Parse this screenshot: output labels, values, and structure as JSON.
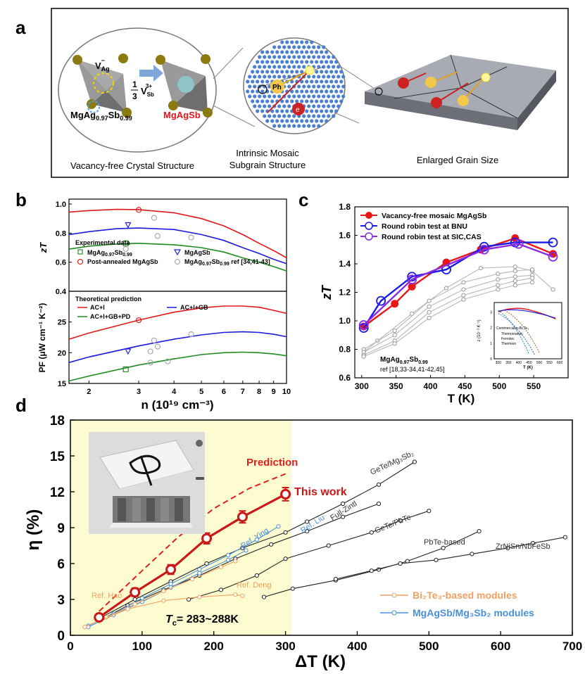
{
  "panels": {
    "a": "a",
    "b": "b",
    "c": "c",
    "d": "d"
  },
  "panel_a": {
    "captions": [
      "Vacancy-free Crystal Structure",
      "Intrinsic Mosaic",
      "Subgrain Structure",
      "Enlarged Grain Size"
    ],
    "vacancy_label": "V",
    "vacancy_sub": "Ag",
    "vacancy_sup": "−",
    "fraction_num": "1",
    "fraction_den": "3",
    "sb_vac": "V",
    "sb_sub": "Sb",
    "sb_sup": "3+",
    "left_formula_main": "MgAg",
    "left_formula_sub1": "0.97",
    "left_formula_mid": "Sb",
    "left_formula_sub2": "0.99",
    "right_formula": "MgAgSb",
    "electron": "e",
    "phonon": "Ph",
    "colors": {
      "highlight_red": "#e8141c",
      "frame": "#000000"
    }
  },
  "chart_data": [
    {
      "id": "b_top",
      "type": "scatter",
      "ylabel": "zT",
      "ylim": [
        0.4,
        1.0
      ],
      "yticks": [
        "0.4",
        "0.6",
        "0.8",
        "1.0"
      ],
      "xscale": "log",
      "legend_title": "Experimental data",
      "legend": [
        {
          "name": "MgAg",
          "sub1": "0.97",
          "mid": "Sb",
          "sub2": "0.99",
          "marker": "square",
          "color": "#2e8b2e"
        },
        {
          "name": "MgAgSb",
          "marker": "triangle-down",
          "color": "#2222cc"
        },
        {
          "name": "Post-annealed MgAgSb",
          "marker": "circle",
          "color": "#dd2222"
        },
        {
          "name": "MgAg",
          "sub1": "0.97",
          "mid": "Sb",
          "sub2": "0.99",
          "tail": " ref [34,41-43]",
          "marker": "hexagon",
          "color": "#aaaaaa"
        }
      ],
      "series": [
        {
          "name": "AC+I",
          "color": "#e01818",
          "x": [
            1.7,
            2,
            2.5,
            3,
            4,
            5,
            6,
            7,
            8,
            9,
            10
          ],
          "y": [
            0.945,
            0.955,
            0.963,
            0.962,
            0.94,
            0.9,
            0.85,
            0.79,
            0.73,
            0.68,
            0.63
          ]
        },
        {
          "name": "AC+I+GB",
          "color": "#1a1ae0",
          "x": [
            1.7,
            2,
            2.5,
            3,
            4,
            5,
            6,
            7,
            8,
            9,
            10
          ],
          "y": [
            0.79,
            0.81,
            0.83,
            0.835,
            0.825,
            0.79,
            0.75,
            0.7,
            0.66,
            0.62,
            0.59
          ]
        },
        {
          "name": "AC+I+GB+PD",
          "color": "#1e8c1e",
          "x": [
            1.7,
            2,
            2.5,
            3,
            4,
            5,
            6,
            7,
            8,
            9,
            10
          ],
          "y": [
            0.69,
            0.71,
            0.725,
            0.73,
            0.72,
            0.7,
            0.67,
            0.63,
            0.6,
            0.57,
            0.54
          ]
        }
      ],
      "points": [
        {
          "series": "MgAg0.97Sb0.99",
          "marker": "square",
          "color": "#2e8b2e",
          "x": 2.7,
          "y": 0.73
        },
        {
          "series": "MgAgSb",
          "marker": "triangle-down",
          "color": "#2222cc",
          "x": 2.75,
          "y": 0.855
        },
        {
          "series": "Post-annealed MgAgSb",
          "marker": "circle",
          "color": "#dd2222",
          "x": 3.0,
          "y": 0.96
        },
        {
          "series": "ref",
          "marker": "hexagon",
          "color": "#aaaaaa",
          "x": 2.7,
          "y": 0.69
        },
        {
          "series": "ref",
          "marker": "hexagon",
          "color": "#aaaaaa",
          "x": 3.4,
          "y": 0.905
        },
        {
          "series": "ref",
          "marker": "hexagon",
          "color": "#aaaaaa",
          "x": 3.5,
          "y": 0.78
        },
        {
          "series": "ref",
          "marker": "hexagon",
          "color": "#aaaaaa",
          "x": 4.6,
          "y": 0.77
        }
      ]
    },
    {
      "id": "b_bottom",
      "type": "line",
      "ylabel": "PF (μW cm⁻¹ K⁻²)",
      "xlabel": "n (10¹⁹ cm⁻³)",
      "ylim": [
        15,
        30
      ],
      "yticks": [
        "15",
        "20",
        "25"
      ],
      "xticks": [
        "2",
        "3",
        "4",
        "5",
        "6",
        "7",
        "8",
        "9",
        "10"
      ],
      "xscale": "log",
      "xlim": [
        1.7,
        10
      ],
      "legend_title": "Theoretical prediction",
      "series": [
        {
          "name": "AC+I",
          "color": "#e01818",
          "x": [
            1.7,
            2,
            3,
            4,
            5,
            6,
            7,
            8,
            9,
            10
          ],
          "y": [
            22.2,
            23.2,
            25.3,
            26.6,
            27.3,
            27.6,
            27.6,
            27.4,
            26.9,
            26.4
          ]
        },
        {
          "name": "AC+I+GB",
          "color": "#1a1ae0",
          "x": [
            1.7,
            2,
            3,
            4,
            5,
            6,
            7,
            8,
            9,
            10
          ],
          "y": [
            18.4,
            19.3,
            21.1,
            22.2,
            22.9,
            23.3,
            23.4,
            23.3,
            23.0,
            22.6
          ]
        },
        {
          "name": "AC+I+GB+PD",
          "color": "#1e8c1e",
          "x": [
            1.7,
            2,
            3,
            4,
            5,
            6,
            7,
            8,
            9,
            10
          ],
          "y": [
            15.4,
            16.2,
            18.0,
            19.0,
            19.7,
            20.0,
            20.1,
            20.0,
            19.8,
            19.5
          ]
        }
      ],
      "points": [
        {
          "marker": "circle",
          "color": "#dd2222",
          "x": 3.0,
          "y": 25.3
        },
        {
          "marker": "triangle-down",
          "color": "#2222cc",
          "x": 2.75,
          "y": 20.2
        },
        {
          "marker": "square",
          "color": "#2e8b2e",
          "x": 2.7,
          "y": 17.3
        },
        {
          "marker": "hexagon",
          "color": "#aaaaaa",
          "x": 3.3,
          "y": 20.2
        },
        {
          "marker": "hexagon",
          "color": "#aaaaaa",
          "x": 3.4,
          "y": 22.0
        },
        {
          "marker": "hexagon",
          "color": "#aaaaaa",
          "x": 3.5,
          "y": 21.0
        },
        {
          "marker": "hexagon",
          "color": "#aaaaaa",
          "x": 3.3,
          "y": 18.4
        },
        {
          "marker": "hexagon",
          "color": "#aaaaaa",
          "x": 3.8,
          "y": 18.6
        },
        {
          "marker": "hexagon",
          "color": "#aaaaaa",
          "x": 4.6,
          "y": 23.0
        }
      ]
    },
    {
      "id": "c",
      "type": "line",
      "ylabel": "zT",
      "xlabel": "T (K)",
      "xlim": [
        290,
        600
      ],
      "ylim": [
        0.6,
        1.8
      ],
      "xticks": [
        "300",
        "350",
        "400",
        "450",
        "500",
        "550"
      ],
      "yticks": [
        "0.6",
        "0.8",
        "1.0",
        "1.2",
        "1.4",
        "1.6",
        "1.8"
      ],
      "series": [
        {
          "name": "Vacancy-free mosaic MgAgSb",
          "color": "#e81818",
          "marker": "filled-circle",
          "x": [
            303,
            348,
            373,
            423,
            473,
            523,
            578
          ],
          "y": [
            0.96,
            1.12,
            1.24,
            1.41,
            1.5,
            1.58,
            1.47
          ]
        },
        {
          "name": "Round robin test at BNU",
          "color": "#1a1ae8",
          "marker": "open-circle",
          "x": [
            303,
            328,
            373,
            423,
            478,
            523,
            578
          ],
          "y": [
            0.95,
            1.14,
            1.31,
            1.36,
            1.52,
            1.55,
            1.55
          ]
        },
        {
          "name": "Round robin test at SIC,CAS",
          "color": "#8a2be2",
          "marker": "open-circle",
          "x": [
            303,
            373,
            478,
            528,
            578
          ],
          "y": [
            0.97,
            1.29,
            1.5,
            1.54,
            1.45
          ]
        }
      ],
      "reference_series": [
        {
          "x": [
            303,
            323,
            373,
            423,
            473,
            523,
            548,
            578
          ],
          "y": [
            0.78,
            0.86,
            1.05,
            1.23,
            1.37,
            1.38,
            1.35,
            1.22
          ]
        },
        {
          "x": [
            303,
            348,
            398,
            448,
            498,
            523,
            548
          ],
          "y": [
            0.8,
            0.93,
            1.14,
            1.27,
            1.33,
            1.35,
            1.36
          ]
        },
        {
          "x": [
            303,
            348,
            398,
            448,
            498,
            523,
            548
          ],
          "y": [
            0.78,
            0.9,
            1.1,
            1.22,
            1.29,
            1.31,
            1.32
          ]
        },
        {
          "x": [
            303,
            348,
            398,
            448,
            498,
            523,
            548
          ],
          "y": [
            0.76,
            0.86,
            1.06,
            1.18,
            1.25,
            1.28,
            1.3
          ]
        },
        {
          "x": [
            303,
            348,
            398,
            448,
            498,
            523,
            548
          ],
          "y": [
            0.75,
            0.84,
            1.02,
            1.15,
            1.22,
            1.25,
            1.27
          ]
        }
      ],
      "annotation_main": "MgAg",
      "annotation_sub1": "0.97",
      "annotation_mid": "Sb",
      "annotation_sub2": "0.99",
      "annotation_ref": "ref [18,33-34,41-42,45]",
      "inset": {
        "ylabel": "z (10⁻³ K⁻¹)",
        "xlabel": "T (K)",
        "xticks": [
          "300",
          "350",
          "400",
          "450",
          "500",
          "550",
          "600"
        ],
        "yticks": [
          "0",
          "1",
          "2",
          "3"
        ],
        "legend_title": "Commercial p-Bi₂Te₃",
        "legend": [
          "Thermonamic",
          "Ferrotec",
          "Thermion"
        ]
      }
    },
    {
      "id": "d",
      "type": "line",
      "ylabel": "η (%)",
      "xlabel": "ΔT (K)",
      "xlim": [
        0,
        700
      ],
      "ylim": [
        0,
        18
      ],
      "xticks": [
        "0",
        "100",
        "200",
        "300",
        "400",
        "500",
        "600",
        "700"
      ],
      "yticks": [
        "0",
        "3",
        "6",
        "9",
        "12",
        "15",
        "18"
      ],
      "tc_label": "T",
      "tc_sub": "c",
      "tc_value": "= 283~288K",
      "prediction_label": "Prediction",
      "this_work_label": "This work",
      "legend": [
        {
          "name": "Bi₂Te₃-based modules",
          "color": "#f0a060"
        },
        {
          "name": "MgAgSb/Mg₃Sb₂ modules",
          "color": "#4a90d9"
        }
      ],
      "this_work": {
        "x": [
          40,
          90,
          140,
          190,
          240,
          300
        ],
        "y": [
          1.5,
          3.6,
          5.5,
          8.1,
          9.9,
          11.8
        ],
        "err": [
          0.3,
          0.35,
          0.4,
          0.45,
          0.5,
          0.55
        ]
      },
      "prediction": {
        "x": [
          40,
          100,
          150,
          200,
          250,
          300
        ],
        "y": [
          2.0,
          5.4,
          8.2,
          10.6,
          12.3,
          13.5
        ]
      },
      "reference_curves": [
        {
          "label": "GeTe/Mg₃Sb₂",
          "color": "#222222",
          "x": [
            40,
            90,
            140,
            190,
            240,
            300,
            330,
            380,
            430,
            480
          ],
          "y": [
            1.4,
            3.0,
            4.5,
            6.0,
            7.3,
            8.6,
            9.5,
            11.0,
            12.6,
            14.5
          ]
        },
        {
          "label": "Full-Zintl",
          "color": "#222222",
          "x": [
            40,
            80,
            130,
            180,
            230,
            280,
            330,
            380,
            430
          ],
          "y": [
            1.2,
            2.5,
            3.8,
            5.0,
            6.4,
            7.6,
            8.7,
            9.9,
            11.0
          ]
        },
        {
          "label": "GeTe/PbTe",
          "color": "#222222",
          "x": [
            165,
            210,
            260,
            300,
            360,
            420,
            460,
            500
          ],
          "y": [
            3.0,
            3.8,
            5.0,
            6.4,
            7.5,
            8.6,
            9.6,
            10.4
          ]
        },
        {
          "label": "PbTe-based",
          "color": "#222222",
          "x": [
            270,
            310,
            370,
            430,
            470,
            520,
            570
          ],
          "y": [
            3.2,
            3.9,
            4.6,
            5.5,
            6.2,
            7.3,
            8.7
          ]
        },
        {
          "label": "ZrNiSn/NbFeSb",
          "color": "#222222",
          "x": [
            370,
            420,
            460,
            510,
            560,
            610,
            645,
            690
          ],
          "y": [
            4.7,
            5.4,
            6.0,
            6.3,
            6.8,
            7.3,
            7.7,
            8.2
          ]
        },
        {
          "label": "Ref. Liu",
          "color": "#4a90d9",
          "x": [
            25,
            60,
            100,
            140,
            180,
            220,
            260,
            290
          ],
          "y": [
            0.8,
            1.8,
            3.1,
            4.3,
            5.5,
            6.7,
            8.0,
            9.1
          ]
        },
        {
          "label": "Ref. Ying",
          "color": "#4a90d9",
          "x": [
            25,
            60,
            100,
            140,
            180,
            220,
            245
          ],
          "y": [
            0.7,
            1.7,
            2.8,
            4.0,
            5.2,
            6.3,
            7.1
          ]
        },
        {
          "label": "Ref. Hao",
          "color": "#f0a060",
          "x": [
            20,
            50,
            90,
            130,
            170,
            210,
            230
          ],
          "y": [
            0.7,
            1.5,
            2.6,
            3.7,
            4.7,
            5.7,
            6.2
          ]
        },
        {
          "label": "Ref. Deng",
          "color": "#f0a060",
          "x": [
            40,
            80,
            130,
            180,
            230,
            240
          ],
          "y": [
            1.2,
            2.2,
            2.9,
            3.2,
            3.4,
            3.3
          ]
        }
      ],
      "ref_labels": [
        "GeTe/Mg₃Sb₂",
        "Full-Zintl",
        "GeTe/PbTe",
        "PbTe-based",
        "ZrNiSn/NbFeSb",
        "Ref. Liu",
        "Ref. Ying",
        "Ref. Hao",
        "Ref. Deng"
      ],
      "colors": {
        "this_work": "#c81818",
        "prediction": "#e02020",
        "shade": "#fdfbd0"
      }
    }
  ]
}
